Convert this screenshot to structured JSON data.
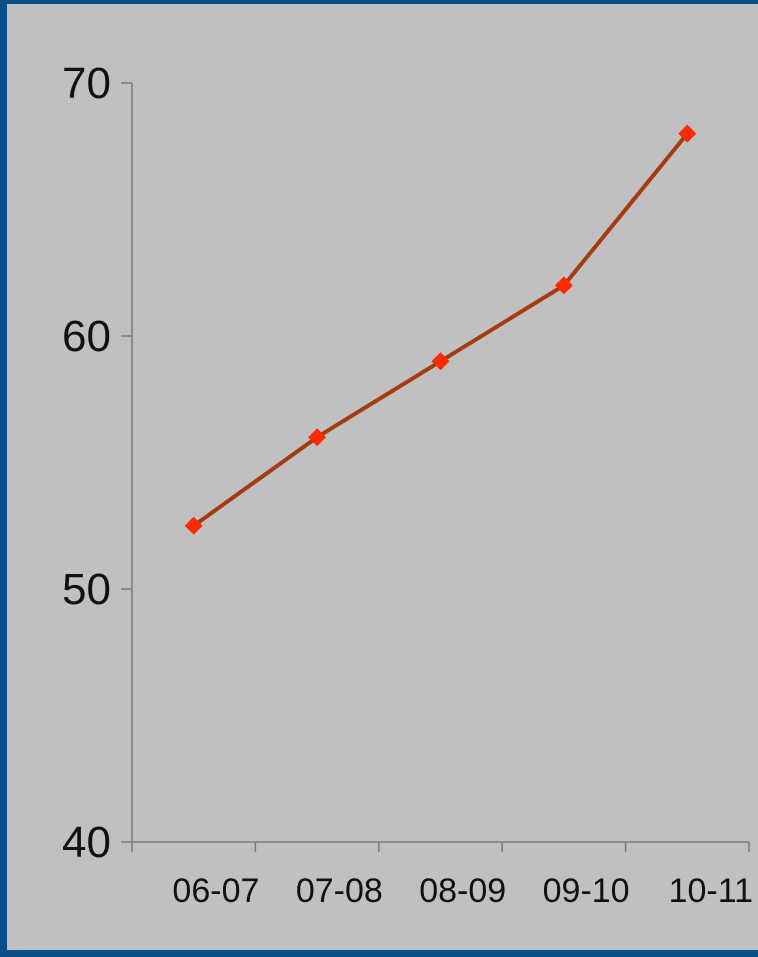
{
  "chart_data": {
    "type": "line",
    "title": "",
    "xlabel": "",
    "ylabel": "",
    "categories": [
      "06-07",
      "07-08",
      "08-09",
      "09-10",
      "10-11"
    ],
    "series": [
      {
        "values": [
          52.5,
          56,
          59,
          62,
          68
        ]
      }
    ],
    "ylim": [
      40,
      70
    ],
    "yticks": [
      40,
      50,
      60,
      70
    ],
    "grid": false,
    "legend": "none",
    "line_color": "#a33a12",
    "marker_color": "#ff2a00",
    "background_color": "#c0c0c0",
    "frame_color": "#0b4f8a"
  }
}
